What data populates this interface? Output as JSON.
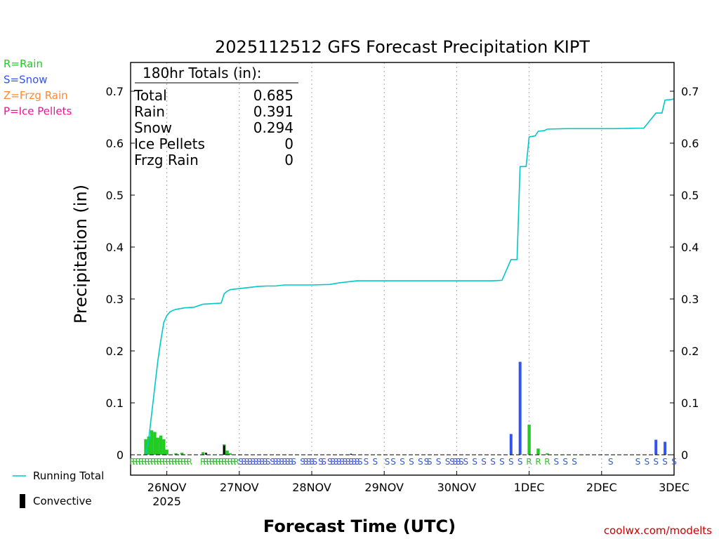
{
  "chart_data": {
    "type": "bar",
    "title": "2025112512 GFS Forecast Precipitation KIPT",
    "xlabel": "Forecast Time (UTC)",
    "ylabel": "Precipitation (in)",
    "ylim": [
      0,
      0.75
    ],
    "yticks": [
      "0",
      "0.1",
      "0.2",
      "0.3",
      "0.4",
      "0.5",
      "0.6",
      "0.7"
    ],
    "x_unit": "hours from 2025-11-25 12Z",
    "xlim": [
      0,
      180
    ],
    "xticks": [
      {
        "h": 12,
        "label": "26NOV",
        "sub": "2025"
      },
      {
        "h": 36,
        "label": "27NOV",
        "sub": ""
      },
      {
        "h": 60,
        "label": "28NOV",
        "sub": ""
      },
      {
        "h": 84,
        "label": "29NOV",
        "sub": ""
      },
      {
        "h": 108,
        "label": "30NOV",
        "sub": ""
      },
      {
        "h": 132,
        "label": "1DEC",
        "sub": ""
      },
      {
        "h": 156,
        "label": "2DEC",
        "sub": ""
      },
      {
        "h": 180,
        "label": "3DEC",
        "sub": ""
      }
    ],
    "precip_type_legend": [
      {
        "label": "R=Rain",
        "color": "#22cc22"
      },
      {
        "label": "S=Snow",
        "color": "#3355ee"
      },
      {
        "label": "Z=Frzg Rain",
        "color": "#ff8833"
      },
      {
        "label": "P=Ice Pellets",
        "color": "#ee1199"
      }
    ],
    "series_legend": [
      {
        "label": "Running Total",
        "color": "#00c8c8",
        "kind": "line"
      },
      {
        "label": "Convective",
        "color": "#000000",
        "kind": "bar"
      }
    ],
    "totals_box": {
      "header": "180hr Totals (in):",
      "rows": [
        {
          "label": "Total",
          "value": "0.685"
        },
        {
          "label": "Rain",
          "value": "0.391"
        },
        {
          "label": "Snow",
          "value": "0.294"
        },
        {
          "label": "Ice Pellets",
          "value": "0"
        },
        {
          "label": "Frzg Rain",
          "value": "0"
        }
      ]
    },
    "bars": [
      {
        "h": 5,
        "v": 0.03,
        "c": "#22cc22"
      },
      {
        "h": 6,
        "v": 0.035,
        "c": "#22cc22"
      },
      {
        "h": 7,
        "v": 0.047,
        "c": "#22cc22"
      },
      {
        "h": 8,
        "v": 0.044,
        "c": "#22cc22"
      },
      {
        "h": 9,
        "v": 0.033,
        "c": "#22cc22"
      },
      {
        "h": 10,
        "v": 0.037,
        "c": "#22cc22"
      },
      {
        "h": 11,
        "v": 0.03,
        "c": "#22cc22"
      },
      {
        "h": 12,
        "v": 0.01,
        "c": "#22cc22"
      },
      {
        "h": 15,
        "v": 0.003,
        "c": "#22cc22"
      },
      {
        "h": 17,
        "v": 0.004,
        "c": "#22cc22"
      },
      {
        "h": 24,
        "v": 0.005,
        "c": "#22cc22"
      },
      {
        "h": 31,
        "v": 0.02,
        "c": "#22cc22"
      },
      {
        "h": 32,
        "v": 0.008,
        "c": "#22cc22"
      },
      {
        "h": 33,
        "v": 0.003,
        "c": "#22cc22"
      },
      {
        "h": 126,
        "v": 0.04,
        "c": "#3355ee"
      },
      {
        "h": 129,
        "v": 0.179,
        "c": "#3355ee"
      },
      {
        "h": 132,
        "v": 0.058,
        "c": "#22cc22"
      },
      {
        "h": 135,
        "v": 0.012,
        "c": "#22cc22"
      },
      {
        "h": 138,
        "v": 0.003,
        "c": "#22cc22"
      },
      {
        "h": 174,
        "v": 0.029,
        "c": "#3355ee"
      },
      {
        "h": 177,
        "v": 0.025,
        "c": "#3355ee"
      }
    ],
    "convective": [
      {
        "h": 31,
        "v": 0.018
      },
      {
        "h": 25,
        "v": 0.004
      },
      {
        "h": 73,
        "v": 0.002
      }
    ],
    "running_total": [
      [
        5,
        0.0
      ],
      [
        6,
        0.03
      ],
      [
        7,
        0.08
      ],
      [
        8,
        0.13
      ],
      [
        9,
        0.18
      ],
      [
        10,
        0.22
      ],
      [
        11,
        0.255
      ],
      [
        12,
        0.268
      ],
      [
        13,
        0.275
      ],
      [
        14,
        0.278
      ],
      [
        15,
        0.28
      ],
      [
        17,
        0.282
      ],
      [
        18,
        0.283
      ],
      [
        21,
        0.284
      ],
      [
        24,
        0.29
      ],
      [
        27,
        0.291
      ],
      [
        30,
        0.292
      ],
      [
        31,
        0.31
      ],
      [
        32,
        0.315
      ],
      [
        33,
        0.318
      ],
      [
        36,
        0.32
      ],
      [
        39,
        0.322
      ],
      [
        42,
        0.324
      ],
      [
        45,
        0.325
      ],
      [
        48,
        0.325
      ],
      [
        51,
        0.327
      ],
      [
        54,
        0.327
      ],
      [
        60,
        0.327
      ],
      [
        66,
        0.328
      ],
      [
        69,
        0.331
      ],
      [
        72,
        0.333
      ],
      [
        75,
        0.335
      ],
      [
        84,
        0.335
      ],
      [
        96,
        0.335
      ],
      [
        108,
        0.335
      ],
      [
        120,
        0.335
      ],
      [
        123,
        0.336
      ],
      [
        126,
        0.376
      ],
      [
        128,
        0.376
      ],
      [
        129,
        0.555
      ],
      [
        131,
        0.555
      ],
      [
        132,
        0.612
      ],
      [
        134,
        0.614
      ],
      [
        135,
        0.623
      ],
      [
        137,
        0.624
      ],
      [
        138,
        0.627
      ],
      [
        144,
        0.628
      ],
      [
        150,
        0.628
      ],
      [
        160,
        0.628
      ],
      [
        170,
        0.629
      ],
      [
        174,
        0.658
      ],
      [
        176,
        0.658
      ],
      [
        177,
        0.683
      ],
      [
        179,
        0.684
      ],
      [
        180,
        0.685
      ]
    ],
    "ptype_row": [
      {
        "h": 0.5,
        "t": "R"
      },
      {
        "h": 1.5,
        "t": "R"
      },
      {
        "h": 2.5,
        "t": "R"
      },
      {
        "h": 3.5,
        "t": "R"
      },
      {
        "h": 4.5,
        "t": "R"
      },
      {
        "h": 5.5,
        "t": "R"
      },
      {
        "h": 6.5,
        "t": "R"
      },
      {
        "h": 7.5,
        "t": "R"
      },
      {
        "h": 8.5,
        "t": "R"
      },
      {
        "h": 9.5,
        "t": "R"
      },
      {
        "h": 10.5,
        "t": "R"
      },
      {
        "h": 11.5,
        "t": "R"
      },
      {
        "h": 12.5,
        "t": "R"
      },
      {
        "h": 13.5,
        "t": "R"
      },
      {
        "h": 14.5,
        "t": "R"
      },
      {
        "h": 15.5,
        "t": "R"
      },
      {
        "h": 16.5,
        "t": "R"
      },
      {
        "h": 17.5,
        "t": "R"
      },
      {
        "h": 18.5,
        "t": "R"
      },
      {
        "h": 19.5,
        "t": "R"
      },
      {
        "h": 24,
        "t": "R"
      },
      {
        "h": 25,
        "t": "R"
      },
      {
        "h": 26,
        "t": "R"
      },
      {
        "h": 27,
        "t": "R"
      },
      {
        "h": 28,
        "t": "R"
      },
      {
        "h": 29,
        "t": "R"
      },
      {
        "h": 30,
        "t": "R"
      },
      {
        "h": 31,
        "t": "R"
      },
      {
        "h": 32,
        "t": "R"
      },
      {
        "h": 33,
        "t": "R"
      },
      {
        "h": 34,
        "t": "R"
      },
      {
        "h": 35,
        "t": "R"
      },
      {
        "h": 36.5,
        "t": "S"
      },
      {
        "h": 37.5,
        "t": "S"
      },
      {
        "h": 38.5,
        "t": "S"
      },
      {
        "h": 39.5,
        "t": "S"
      },
      {
        "h": 40.5,
        "t": "S"
      },
      {
        "h": 41.5,
        "t": "S"
      },
      {
        "h": 42.5,
        "t": "S"
      },
      {
        "h": 43.5,
        "t": "S"
      },
      {
        "h": 44.5,
        "t": "S"
      },
      {
        "h": 45.5,
        "t": "S"
      },
      {
        "h": 47,
        "t": "S"
      },
      {
        "h": 48,
        "t": "S"
      },
      {
        "h": 49,
        "t": "S"
      },
      {
        "h": 50,
        "t": "S"
      },
      {
        "h": 51,
        "t": "S"
      },
      {
        "h": 52,
        "t": "S"
      },
      {
        "h": 53,
        "t": "S"
      },
      {
        "h": 54,
        "t": "S"
      },
      {
        "h": 57,
        "t": "S"
      },
      {
        "h": 58,
        "t": "S"
      },
      {
        "h": 59,
        "t": "S"
      },
      {
        "h": 60,
        "t": "S"
      },
      {
        "h": 61,
        "t": "S"
      },
      {
        "h": 63,
        "t": "S"
      },
      {
        "h": 64,
        "t": "S"
      },
      {
        "h": 66,
        "t": "S"
      },
      {
        "h": 67,
        "t": "S"
      },
      {
        "h": 68,
        "t": "S"
      },
      {
        "h": 69,
        "t": "S"
      },
      {
        "h": 70,
        "t": "S"
      },
      {
        "h": 71,
        "t": "S"
      },
      {
        "h": 72,
        "t": "S"
      },
      {
        "h": 73,
        "t": "S"
      },
      {
        "h": 74,
        "t": "S"
      },
      {
        "h": 75,
        "t": "S"
      },
      {
        "h": 76,
        "t": "S"
      },
      {
        "h": 78,
        "t": "S"
      },
      {
        "h": 81,
        "t": "S"
      },
      {
        "h": 85,
        "t": "S"
      },
      {
        "h": 87,
        "t": "S"
      },
      {
        "h": 90,
        "t": "S"
      },
      {
        "h": 93,
        "t": "S"
      },
      {
        "h": 96,
        "t": "S"
      },
      {
        "h": 98,
        "t": "S"
      },
      {
        "h": 99,
        "t": "S"
      },
      {
        "h": 102,
        "t": "S"
      },
      {
        "h": 105,
        "t": "S"
      },
      {
        "h": 106.5,
        "t": "S"
      },
      {
        "h": 107.5,
        "t": "S"
      },
      {
        "h": 108.5,
        "t": "S"
      },
      {
        "h": 109.5,
        "t": "S"
      },
      {
        "h": 111,
        "t": "S"
      },
      {
        "h": 114,
        "t": "S"
      },
      {
        "h": 117,
        "t": "S"
      },
      {
        "h": 120,
        "t": "S"
      },
      {
        "h": 123,
        "t": "S"
      },
      {
        "h": 126,
        "t": "S"
      },
      {
        "h": 129,
        "t": "S"
      },
      {
        "h": 132,
        "t": "R"
      },
      {
        "h": 135,
        "t": "R"
      },
      {
        "h": 138,
        "t": "R"
      },
      {
        "h": 141,
        "t": "S"
      },
      {
        "h": 144,
        "t": "S"
      },
      {
        "h": 147,
        "t": "S"
      },
      {
        "h": 159,
        "t": "S"
      },
      {
        "h": 168,
        "t": "S"
      },
      {
        "h": 171,
        "t": "S"
      },
      {
        "h": 174,
        "t": "S"
      },
      {
        "h": 177,
        "t": "S"
      },
      {
        "h": 180,
        "t": "S"
      }
    ],
    "source": "coolwx.com/modelts"
  }
}
